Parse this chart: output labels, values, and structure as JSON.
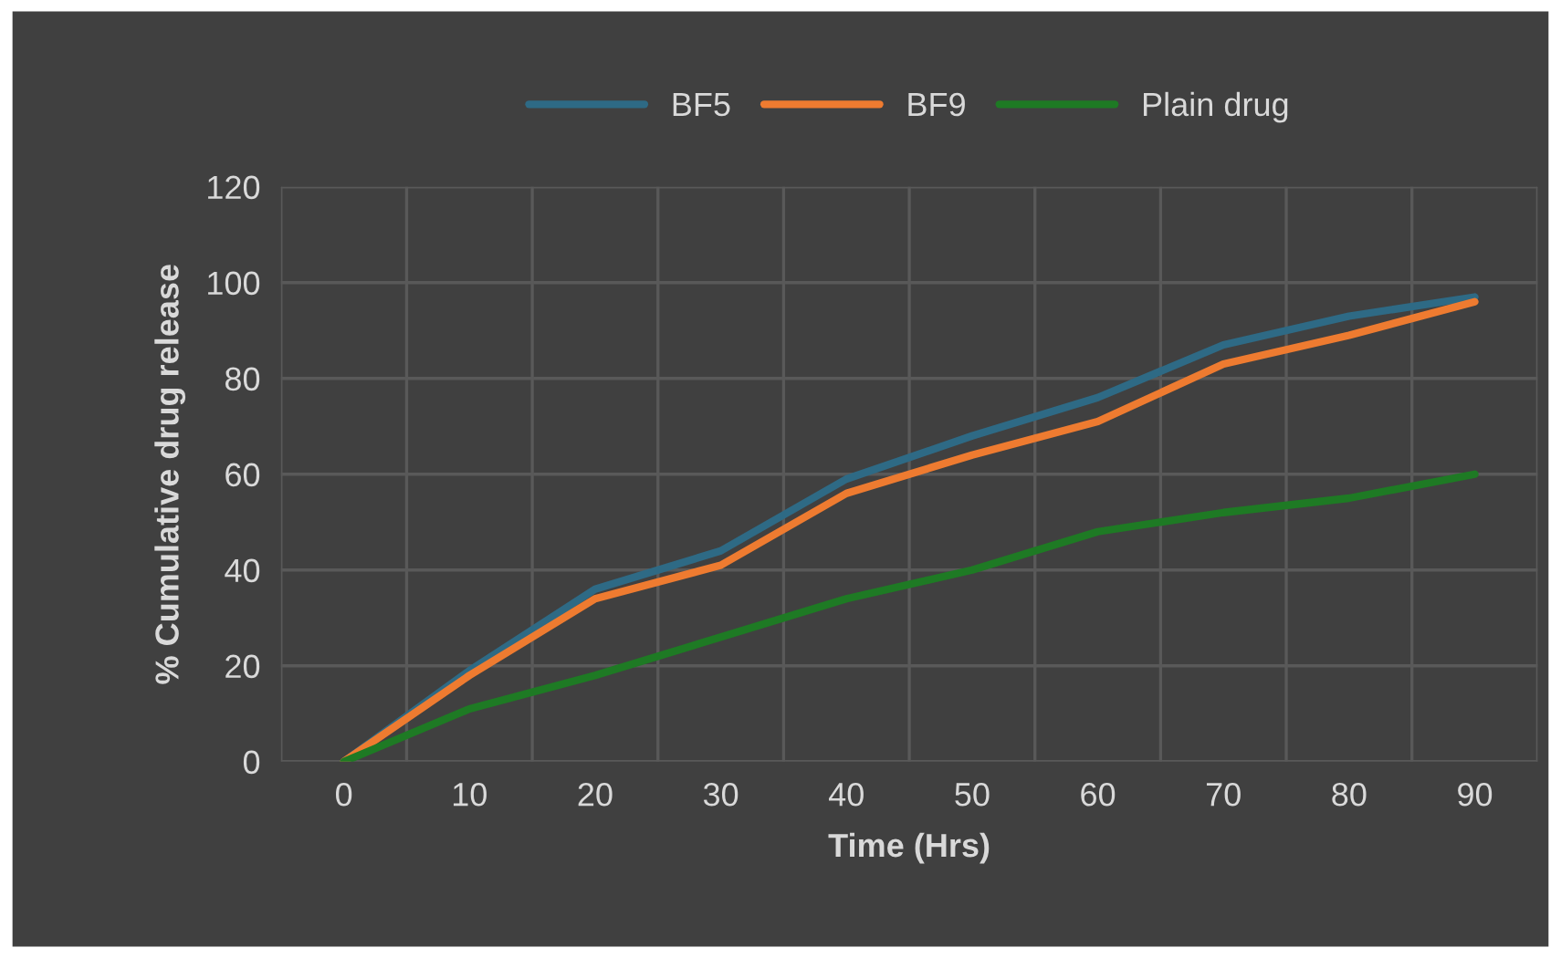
{
  "chart_data": {
    "type": "line",
    "xlabel": "Time (Hrs)",
    "ylabel": "% Cumulative drug release",
    "categories": [
      "0",
      "10",
      "20",
      "30",
      "40",
      "50",
      "60",
      "70",
      "80",
      "90"
    ],
    "series": [
      {
        "name": "BF5",
        "color": "#2e6a85",
        "values": [
          0,
          19,
          36,
          44,
          59,
          68,
          76,
          87,
          93,
          97
        ]
      },
      {
        "name": "BF9",
        "color": "#ee7b30",
        "values": [
          0,
          18,
          34,
          41,
          56,
          64,
          71,
          83,
          89,
          96
        ]
      },
      {
        "name": "Plain drug",
        "color": "#1e7a24",
        "values": [
          0,
          11,
          18,
          26,
          34,
          40,
          48,
          52,
          55,
          60
        ]
      }
    ],
    "ylim": [
      0,
      120
    ],
    "yticks": [
      0,
      20,
      40,
      60,
      80,
      100,
      120
    ],
    "grid": true,
    "legend": "top",
    "marker": "none",
    "line_style": "solid"
  }
}
